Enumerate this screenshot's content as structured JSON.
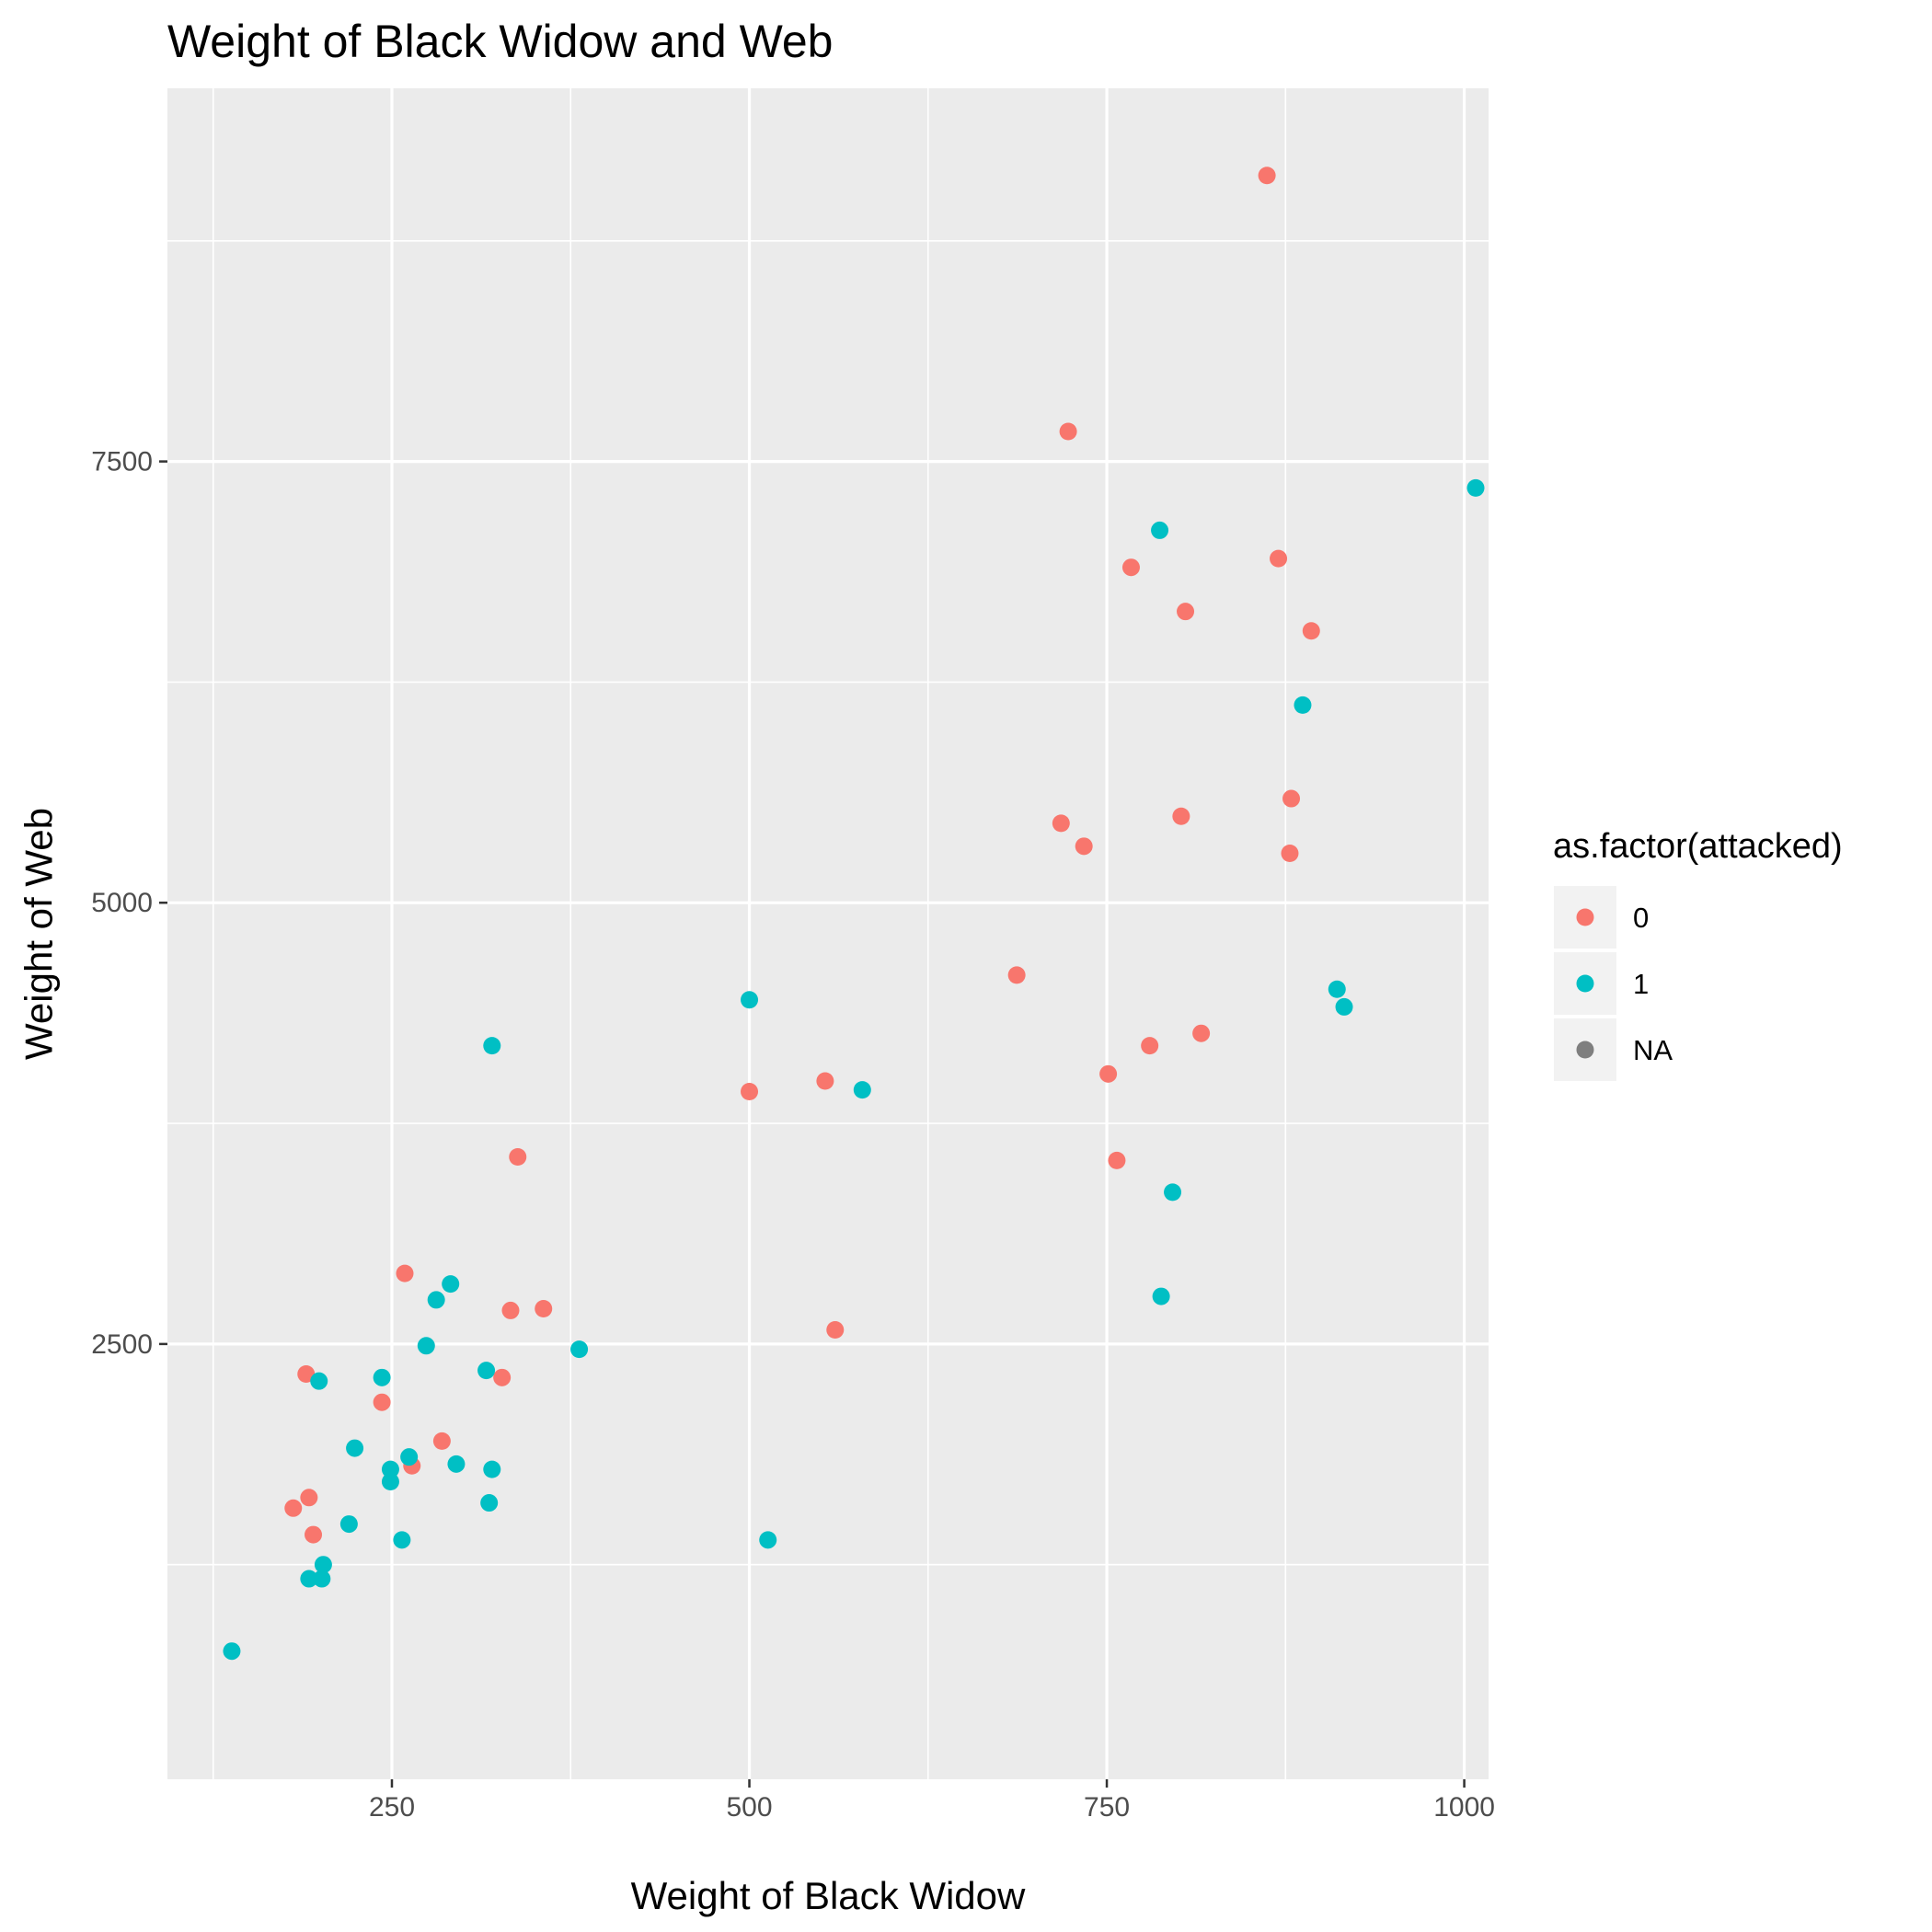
{
  "chart_data": {
    "type": "scatter",
    "title": "Weight of Black Widow and Web",
    "xlabel": "Weight of Black Widow",
    "ylabel": "Weight of Web",
    "xlim": [
      93,
      1017
    ],
    "ylim": [
      34,
      9614
    ],
    "x_ticks": [
      {
        "value": 250,
        "label": "250"
      },
      {
        "value": 500,
        "label": "500"
      },
      {
        "value": 750,
        "label": "750"
      },
      {
        "value": 1000,
        "label": "1000"
      }
    ],
    "y_ticks": [
      {
        "value": 2500,
        "label": "2500"
      },
      {
        "value": 5000,
        "label": "5000"
      },
      {
        "value": 7500,
        "label": "7500"
      }
    ],
    "grid": true,
    "panel_background": "#ebebeb",
    "grid_color": "#ffffff",
    "legend": {
      "title": "as.factor(attacked)",
      "position": "right",
      "entries": [
        {
          "label": "0",
          "color": "#f8766d"
        },
        {
          "label": "1",
          "color": "#00bfc4"
        },
        {
          "label": "NA",
          "color": "#7f7f7f"
        }
      ]
    },
    "series": [
      {
        "name": "0",
        "color": "#f8766d",
        "points": [
          [
            862,
            9120
          ],
          [
            723,
            7670
          ],
          [
            870,
            6950
          ],
          [
            767,
            6900
          ],
          [
            805,
            6650
          ],
          [
            893,
            6540
          ],
          [
            879,
            5590
          ],
          [
            718,
            5450
          ],
          [
            802,
            5490
          ],
          [
            734,
            5320
          ],
          [
            878,
            5280
          ],
          [
            687,
            4590
          ],
          [
            816,
            4260
          ],
          [
            780,
            4190
          ],
          [
            751,
            4030
          ],
          [
            553,
            3990
          ],
          [
            500,
            3930
          ],
          [
            757,
            3540
          ],
          [
            338,
            3560
          ],
          [
            259,
            2900
          ],
          [
            333,
            2690
          ],
          [
            356,
            2700
          ],
          [
            560,
            2580
          ],
          [
            327,
            2310
          ],
          [
            190,
            2330
          ],
          [
            243,
            2170
          ],
          [
            285,
            1950
          ],
          [
            264,
            1810
          ],
          [
            192,
            1630
          ],
          [
            181,
            1570
          ],
          [
            195,
            1420
          ]
        ]
      },
      {
        "name": "1",
        "color": "#00bfc4",
        "points": [
          [
            1008,
            7350
          ],
          [
            787,
            7110
          ],
          [
            887,
            6120
          ],
          [
            911,
            4510
          ],
          [
            916,
            4410
          ],
          [
            500,
            4450
          ],
          [
            320,
            4190
          ],
          [
            579,
            3940
          ],
          [
            796,
            3360
          ],
          [
            788,
            2770
          ],
          [
            291,
            2840
          ],
          [
            281,
            2750
          ],
          [
            274,
            2490
          ],
          [
            381,
            2470
          ],
          [
            316,
            2350
          ],
          [
            243,
            2310
          ],
          [
            199,
            2290
          ],
          [
            224,
            1910
          ],
          [
            262,
            1860
          ],
          [
            295,
            1820
          ],
          [
            249,
            1790
          ],
          [
            320,
            1790
          ],
          [
            249,
            1720
          ],
          [
            318,
            1600
          ],
          [
            220,
            1480
          ],
          [
            257,
            1390
          ],
          [
            513,
            1390
          ],
          [
            202,
            1250
          ],
          [
            192,
            1170
          ],
          [
            201,
            1170
          ],
          [
            138,
            760
          ]
        ]
      }
    ]
  }
}
